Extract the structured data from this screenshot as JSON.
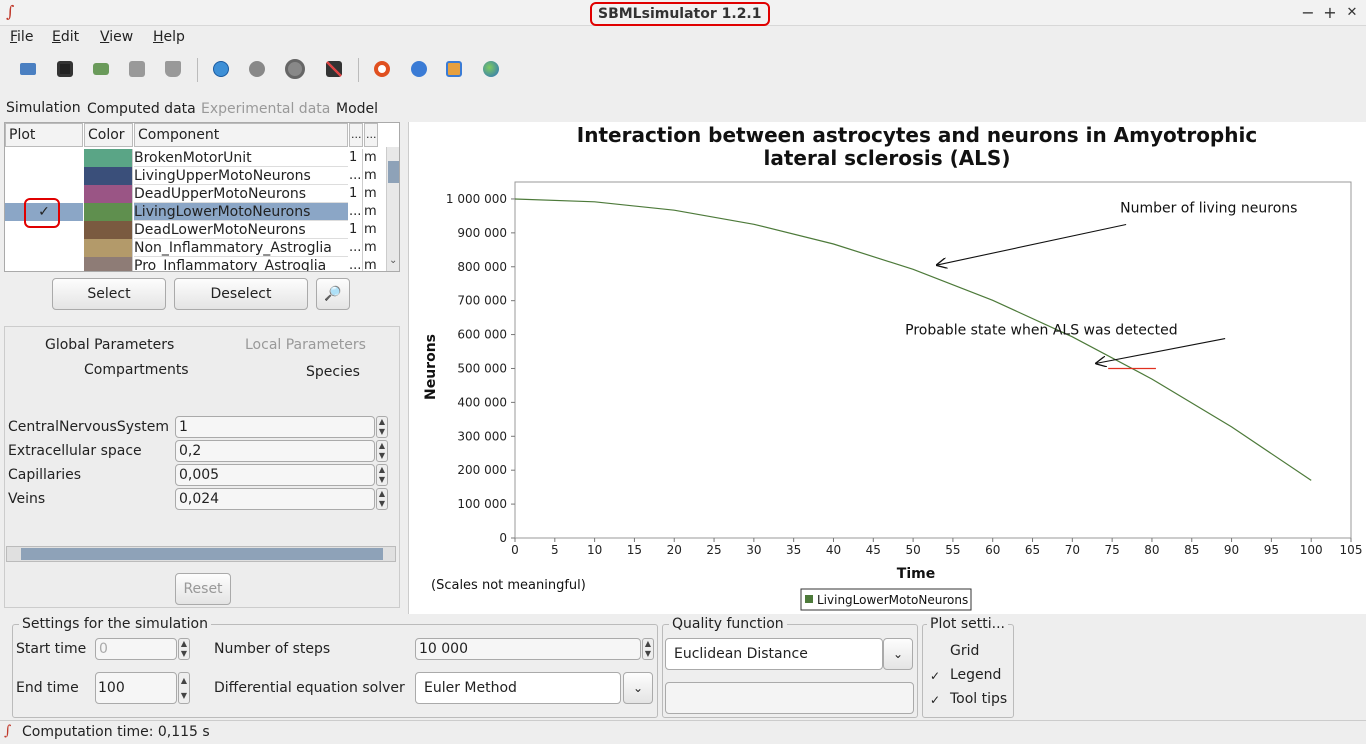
{
  "window": {
    "title": "SBMLsimulator 1.2.1",
    "logo_glyph": "∫",
    "minimize": "−",
    "maximize": "+",
    "close": "✕"
  },
  "menu": [
    {
      "first": "F",
      "rest": "ile"
    },
    {
      "first": "E",
      "rest": "dit"
    },
    {
      "first": "V",
      "rest": "iew"
    },
    {
      "first": "H",
      "rest": "elp"
    }
  ],
  "toolbar_icons": [
    "open-folder-icon",
    "save-icon",
    "print-icon",
    "export-icon",
    "delete-icon",
    "play-icon",
    "stop-icon",
    "spiral-icon",
    "tools-icon",
    "help-lifebuoy-icon",
    "info-icon",
    "notes-icon",
    "globe-icon"
  ],
  "tabs": {
    "simulation": "Simulation",
    "computed": "Computed data",
    "experimental": "Experimental data",
    "model": "Model"
  },
  "table": {
    "headers": {
      "plot": "Plot",
      "color": "Color",
      "component": "Component",
      "col4": "...",
      "col5": "..."
    },
    "rows": [
      {
        "name": "BrokenMotorUnit",
        "color": "#5aa586",
        "v": "1",
        "u": "m",
        "checked": ""
      },
      {
        "name": "LivingUpperMotoNeurons",
        "color": "#3a4f7a",
        "v": "...",
        "u": "m",
        "checked": ""
      },
      {
        "name": "DeadUpperMotoNeurons",
        "color": "#9a5585",
        "v": "1",
        "u": "m",
        "checked": ""
      },
      {
        "name": "LivingLowerMotoNeurons",
        "color": "#5f8f4e",
        "v": "...",
        "u": "m",
        "checked": "✓"
      },
      {
        "name": "DeadLowerMotoNeurons",
        "color": "#7a5a40",
        "v": "1",
        "u": "m",
        "checked": ""
      },
      {
        "name": "Non_Inflammatory_Astroglia",
        "color": "#b39a6a",
        "v": "...",
        "u": "m",
        "checked": ""
      },
      {
        "name": "Pro_Inflammatory_Astroglia",
        "color": "#8e7c76",
        "v": "...",
        "u": "m",
        "checked": ""
      }
    ]
  },
  "buttons": {
    "select": "Select",
    "deselect": "Deselect",
    "search_glyph": "🔎",
    "reset": "Reset"
  },
  "param_tabs": {
    "global": "Global Parameters",
    "local": "Local Parameters",
    "compartments": "Compartments",
    "species": "Species"
  },
  "compartments": [
    {
      "label": "CentralNervousSystem",
      "value": "1"
    },
    {
      "label": "Extracellular space",
      "value": "0,2"
    },
    {
      "label": "Capillaries",
      "value": "0,005"
    },
    {
      "label": "Veins",
      "value": "0,024"
    }
  ],
  "chart_data": {
    "type": "line",
    "title_line1": "Interaction between astrocytes and neurons in Amyotrophic",
    "title_line2": "lateral sclerosis (ALS)",
    "xlabel": "Time",
    "ylabel": "Neurons",
    "xlim": [
      0,
      105
    ],
    "ylim": [
      0,
      1050000
    ],
    "xticks": [
      0,
      5,
      10,
      15,
      20,
      25,
      30,
      35,
      40,
      45,
      50,
      55,
      60,
      65,
      70,
      75,
      80,
      85,
      90,
      95,
      100,
      105
    ],
    "yticks": [
      0,
      100000,
      200000,
      300000,
      400000,
      500000,
      600000,
      700000,
      800000,
      900000,
      1000000
    ],
    "ytick_labels": [
      "0",
      "100 000",
      "200 000",
      "300 000",
      "400 000",
      "500 000",
      "600 000",
      "700 000",
      "800 000",
      "900 000",
      "1 000 000"
    ],
    "series": [
      {
        "name": "LivingLowerMotoNeurons",
        "color": "#4d7a3a",
        "x": [
          0,
          10,
          20,
          30,
          40,
          50,
          60,
          70,
          80,
          90,
          100
        ],
        "y": [
          1000000,
          991700,
          966800,
          925300,
          867200,
          792500,
          701200,
          593300,
          468800,
          327700,
          170000
        ]
      }
    ],
    "marker": {
      "x_start": 74.5,
      "x_end": 80.5,
      "y": 500000,
      "color": "#e03020"
    },
    "annotations": [
      {
        "text": "Number of living neurons",
        "at_x": 76,
        "at_y": 960000,
        "arrow_to_x": 53,
        "arrow_to_y": 805000
      },
      {
        "text": "Probable state when ALS was detected",
        "at_x": 49,
        "at_y": 600000,
        "arrow_to_x": 73,
        "arrow_to_y": 515000
      }
    ],
    "note": "(Scales not meaningful)",
    "legend": "bottom-center"
  },
  "settings": {
    "legend": "Settings for the simulation",
    "start_time_label": "Start time",
    "start_time": "0",
    "end_time_label": "End time",
    "end_time": "100",
    "steps_label": "Number of steps",
    "steps": "10 000",
    "solver_label": "Differential equation solver",
    "solver": "Euler Method"
  },
  "quality": {
    "legend": "Quality function",
    "value": "Euclidean Distance",
    "extra": ""
  },
  "plot_settings": {
    "legend": "Plot setti...",
    "grid": "Grid",
    "legend_item": "Legend",
    "tooltips": "Tool tips",
    "check": "✓"
  },
  "status": {
    "text": "Computation time: 0,115 s"
  }
}
